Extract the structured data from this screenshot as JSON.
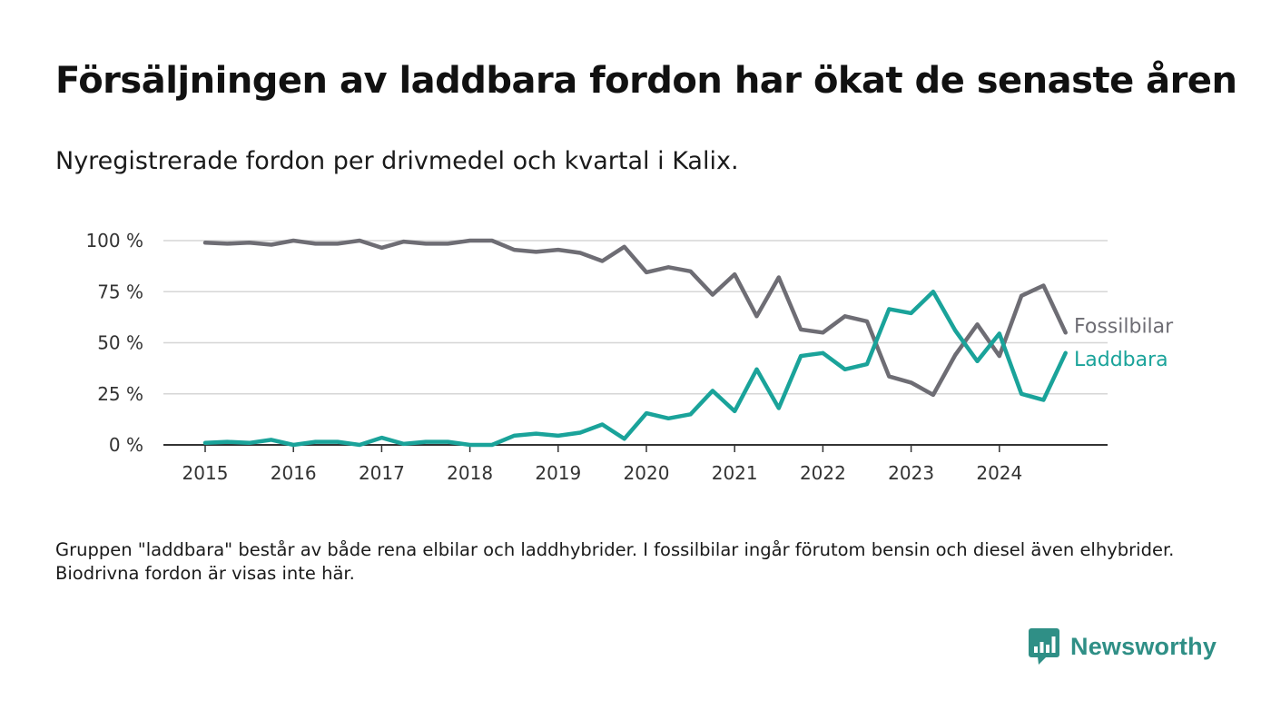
{
  "title": "Försäljningen av laddbara fordon har ökat de senaste åren",
  "subtitle": "Nyregistrerade fordon per drivmedel och kvartal i Kalix.",
  "note": "Gruppen \"laddbara\" består av både rena elbilar och laddhybrider. I fossilbilar ingår förutom bensin och diesel även elhybrider. Biodrivna fordon är visas inte här.",
  "brand": {
    "name": "Newsworthy",
    "color": "#2f8f86"
  },
  "chart_data": {
    "type": "line",
    "xlabel": "",
    "ylabel": "",
    "x_ticks": [
      "2015",
      "2016",
      "2017",
      "2018",
      "2019",
      "2020",
      "2021",
      "2022",
      "2023",
      "2024"
    ],
    "y_ticks": [
      "0 %",
      "25 %",
      "50 %",
      "75 %",
      "100 %"
    ],
    "ylim": [
      0,
      100
    ],
    "grid": true,
    "legend": "end-of-line labels",
    "x": [
      "2015 Q1",
      "2015 Q2",
      "2015 Q3",
      "2015 Q4",
      "2016 Q1",
      "2016 Q2",
      "2016 Q3",
      "2016 Q4",
      "2017 Q1",
      "2017 Q2",
      "2017 Q3",
      "2017 Q4",
      "2018 Q1",
      "2018 Q2",
      "2018 Q3",
      "2018 Q4",
      "2019 Q1",
      "2019 Q2",
      "2019 Q3",
      "2019 Q4",
      "2020 Q1",
      "2020 Q2",
      "2020 Q3",
      "2020 Q4",
      "2021 Q1",
      "2021 Q2",
      "2021 Q3",
      "2021 Q4",
      "2022 Q1",
      "2022 Q2",
      "2022 Q3",
      "2022 Q4",
      "2023 Q1",
      "2023 Q2",
      "2023 Q3",
      "2023 Q4",
      "2024 Q1",
      "2024 Q2",
      "2024 Q3",
      "2024 Q4"
    ],
    "series": [
      {
        "name": "Fossilbilar",
        "color": "#6e6d74",
        "values": [
          99,
          98.5,
          99,
          98,
          100,
          98.5,
          98.5,
          100,
          96.5,
          99.5,
          98.5,
          98.5,
          100,
          100,
          95.5,
          94.5,
          95.5,
          94,
          90,
          97,
          84.5,
          87,
          85,
          73.5,
          83.5,
          63,
          82,
          56.5,
          55,
          63,
          60.5,
          33.5,
          30.5,
          24.5,
          44,
          59,
          43.5,
          73,
          78,
          55
        ]
      },
      {
        "name": "Laddbara",
        "color": "#1aa39a",
        "values": [
          1,
          1.5,
          1,
          2.5,
          0,
          1.5,
          1.5,
          0,
          3.5,
          0.5,
          1.5,
          1.5,
          0,
          0,
          4.5,
          5.5,
          4.5,
          6,
          10,
          3,
          15.5,
          13,
          15,
          26.5,
          16.5,
          37,
          18,
          43.5,
          45,
          37,
          39.5,
          66.5,
          64.5,
          75,
          56,
          41,
          54.5,
          25,
          22,
          45
        ]
      }
    ]
  }
}
